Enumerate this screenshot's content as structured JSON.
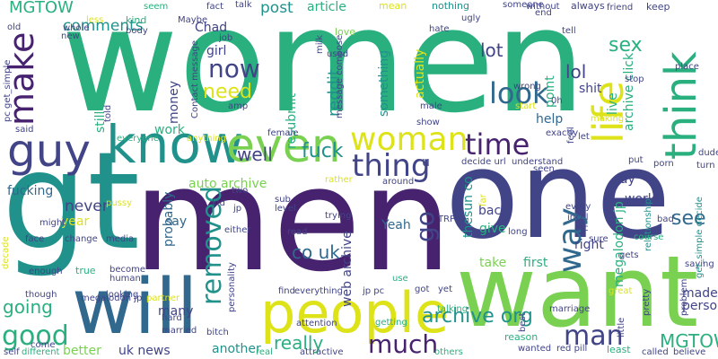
{
  "palette": {
    "purple": "#46226f",
    "indigo": "#414487",
    "blue": "#31688e",
    "teal": "#21918c",
    "green": "#2ab07f",
    "lime": "#7ad151",
    "yellow": "#dde318"
  },
  "words": [
    {
      "text": "women",
      "color": "green"
    },
    {
      "text": "gt",
      "color": "teal"
    },
    {
      "text": "men",
      "color": "purple"
    },
    {
      "text": "one",
      "color": "indigo"
    },
    {
      "text": "want",
      "color": "lime"
    },
    {
      "text": "will",
      "color": "blue"
    },
    {
      "text": "people",
      "color": "yellow"
    },
    {
      "text": "know",
      "color": "teal"
    },
    {
      "text": "even",
      "color": "lime"
    },
    {
      "text": "guy",
      "color": "indigo"
    },
    {
      "text": "think",
      "color": "green"
    },
    {
      "text": "woman",
      "color": "yellow"
    },
    {
      "text": "life",
      "color": "yellow"
    },
    {
      "text": "make",
      "color": "purple"
    },
    {
      "text": "thing",
      "color": "indigo"
    },
    {
      "text": "time",
      "color": "purple"
    },
    {
      "text": "look",
      "color": "blue"
    },
    {
      "text": "now",
      "color": "indigo"
    },
    {
      "text": "need",
      "color": "yellow"
    },
    {
      "text": "way",
      "color": "blue"
    },
    {
      "text": "man",
      "color": "indigo"
    },
    {
      "text": "good",
      "color": "green"
    },
    {
      "text": "removed",
      "color": "teal"
    },
    {
      "text": "really",
      "color": "green"
    },
    {
      "text": "much",
      "color": "purple"
    },
    {
      "text": "archive org",
      "color": "teal"
    },
    {
      "text": "MGTOW",
      "color": "green"
    },
    {
      "text": "going",
      "color": "green"
    },
    {
      "text": "go",
      "color": "indigo"
    },
    {
      "text": "well",
      "color": "indigo"
    },
    {
      "text": "fuck",
      "color": "teal"
    },
    {
      "text": "co uk",
      "color": "blue"
    },
    {
      "text": "see",
      "color": "blue"
    },
    {
      "text": "sex",
      "color": "green"
    },
    {
      "text": "lol",
      "color": "indigo"
    },
    {
      "text": "lot",
      "color": "indigo"
    },
    {
      "text": "MGTOW",
      "color": "green"
    },
    {
      "text": "comments",
      "color": "teal"
    },
    {
      "text": "post",
      "color": "teal"
    },
    {
      "text": "article",
      "color": "green"
    },
    {
      "text": "Chad",
      "color": "indigo"
    },
    {
      "text": "girl",
      "color": "indigo"
    },
    {
      "text": "money",
      "color": "indigo"
    },
    {
      "text": "still",
      "color": "green"
    },
    {
      "text": "work",
      "color": "green"
    },
    {
      "text": "reddit",
      "color": "teal"
    },
    {
      "text": "resubmit",
      "color": "green"
    },
    {
      "text": "something",
      "color": "teal"
    },
    {
      "text": "actually",
      "color": "yellow"
    },
    {
      "text": "point",
      "color": "green"
    },
    {
      "text": "shit",
      "color": "indigo"
    },
    {
      "text": "live",
      "color": "green"
    },
    {
      "text": "archive click",
      "color": "green"
    },
    {
      "text": "fucking",
      "color": "blue"
    },
    {
      "text": "auto archive",
      "color": "lime"
    },
    {
      "text": "year",
      "color": "yellow"
    },
    {
      "text": "never",
      "color": "indigo"
    },
    {
      "text": "say",
      "color": "blue"
    },
    {
      "text": "probably",
      "color": "blue"
    },
    {
      "text": "Yeah",
      "color": "blue"
    },
    {
      "text": "back",
      "color": "indigo"
    },
    {
      "text": "give",
      "color": "green"
    },
    {
      "text": "thesun co",
      "color": "teal"
    },
    {
      "text": "megalodon jp",
      "color": "green"
    },
    {
      "text": "right",
      "color": "indigo"
    },
    {
      "text": "world",
      "color": "indigo"
    },
    {
      "text": "day",
      "color": "indigo"
    },
    {
      "text": "web archive",
      "color": "indigo"
    },
    {
      "text": "many",
      "color": "indigo"
    },
    {
      "text": "uk news",
      "color": "indigo"
    },
    {
      "text": "another",
      "color": "teal"
    },
    {
      "text": "better",
      "color": "lime"
    },
    {
      "text": "take",
      "color": "lime"
    },
    {
      "text": "first",
      "color": "green"
    },
    {
      "text": "made",
      "color": "indigo"
    },
    {
      "text": "person",
      "color": "indigo"
    },
    {
      "text": "help",
      "color": "blue"
    },
    {
      "text": "kind",
      "color": "green"
    },
    {
      "text": "seem",
      "color": "green"
    },
    {
      "text": "always",
      "color": "indigo"
    },
    {
      "text": "keep",
      "color": "indigo"
    },
    {
      "text": "nothing",
      "color": "teal"
    },
    {
      "text": "someone",
      "color": "indigo"
    },
    {
      "text": "new",
      "color": "indigo"
    },
    {
      "text": "old",
      "color": "indigo"
    },
    {
      "text": "said",
      "color": "indigo"
    },
    {
      "text": "two",
      "color": "indigo"
    },
    {
      "text": "kid",
      "color": "indigo"
    },
    {
      "text": "find",
      "color": "indigo"
    },
    {
      "text": "hard",
      "color": "indigo"
    },
    {
      "text": "got",
      "color": "indigo"
    },
    {
      "text": "yet",
      "color": "indigo"
    },
    {
      "text": "true",
      "color": "green"
    },
    {
      "text": "reason",
      "color": "green"
    },
    {
      "text": "least",
      "color": "green"
    },
    {
      "text": "let",
      "color": "indigo"
    },
    {
      "text": "love",
      "color": "lime"
    },
    {
      "text": "relationship",
      "color": "teal"
    },
    {
      "text": "bad",
      "color": "indigo"
    },
    {
      "text": "saying",
      "color": "indigo"
    },
    {
      "text": "getting",
      "color": "green"
    },
    {
      "text": "talking",
      "color": "green"
    },
    {
      "text": "course",
      "color": "green"
    },
    {
      "text": "come",
      "color": "indigo"
    },
    {
      "text": "self",
      "color": "indigo"
    },
    {
      "text": "different",
      "color": "green"
    },
    {
      "text": "real",
      "color": "green"
    },
    {
      "text": "attractive",
      "color": "indigo"
    },
    {
      "text": "others",
      "color": "green"
    },
    {
      "text": "wanted",
      "color": "indigo"
    },
    {
      "text": "red pill",
      "color": "indigo"
    },
    {
      "text": "called",
      "color": "indigo"
    },
    {
      "text": "believe",
      "color": "indigo"
    },
    {
      "text": "everything",
      "color": "indigo"
    },
    {
      "text": "jp pc",
      "color": "indigo"
    },
    {
      "text": "use",
      "color": "green"
    },
    {
      "text": "megalodon jp",
      "color": "indigo"
    },
    {
      "text": "partner",
      "color": "yellow"
    },
    {
      "text": "married",
      "color": "indigo"
    },
    {
      "text": "bitch",
      "color": "indigo"
    },
    {
      "text": "looking",
      "color": "indigo"
    },
    {
      "text": "become",
      "color": "indigo"
    },
    {
      "text": "human",
      "color": "indigo"
    },
    {
      "text": "though",
      "color": "indigo"
    },
    {
      "text": "enough",
      "color": "indigo"
    },
    {
      "text": "face",
      "color": "indigo"
    },
    {
      "text": "change",
      "color": "indigo"
    },
    {
      "text": "media",
      "color": "indigo"
    },
    {
      "text": "might",
      "color": "indigo"
    },
    {
      "text": "pussy",
      "color": "yellow"
    },
    {
      "text": "everyone",
      "color": "green"
    },
    {
      "text": "anything",
      "color": "yellow"
    },
    {
      "text": "female",
      "color": "indigo"
    },
    {
      "text": "amp",
      "color": "indigo"
    },
    {
      "text": "used",
      "color": "indigo"
    },
    {
      "text": "sub",
      "color": "indigo"
    },
    {
      "text": "level",
      "color": "indigo"
    },
    {
      "text": "trying",
      "color": "indigo"
    },
    {
      "text": "rather",
      "color": "yellow"
    },
    {
      "text": "around",
      "color": "indigo"
    },
    {
      "text": "decide url",
      "color": "indigo"
    },
    {
      "text": "understand",
      "color": "indigo"
    },
    {
      "text": "exactly",
      "color": "indigo"
    },
    {
      "text": "seen",
      "color": "indigo"
    },
    {
      "text": "incel",
      "color": "indigo"
    },
    {
      "text": "every",
      "color": "indigo"
    },
    {
      "text": "long",
      "color": "indigo"
    },
    {
      "text": "etc",
      "color": "indigo"
    },
    {
      "text": "TRP",
      "color": "indigo"
    },
    {
      "text": "marriage",
      "color": "indigo"
    },
    {
      "text": "great",
      "color": "yellow"
    },
    {
      "text": "sure",
      "color": "indigo"
    },
    {
      "text": "gets",
      "color": "indigo"
    },
    {
      "text": "porn",
      "color": "indigo"
    },
    {
      "text": "dude",
      "color": "indigo"
    },
    {
      "text": "turn",
      "color": "indigo"
    },
    {
      "text": "stop",
      "color": "indigo"
    },
    {
      "text": "place",
      "color": "indigo"
    },
    {
      "text": "friend",
      "color": "indigo"
    },
    {
      "text": "tell",
      "color": "indigo"
    },
    {
      "text": "without",
      "color": "indigo"
    },
    {
      "text": "end",
      "color": "indigo"
    },
    {
      "text": "ugly",
      "color": "indigo"
    },
    {
      "text": "hate",
      "color": "indigo"
    },
    {
      "text": "wrong",
      "color": "indigo"
    },
    {
      "text": "start",
      "color": "yellow"
    },
    {
      "text": "male",
      "color": "indigo"
    },
    {
      "text": "show",
      "color": "indigo"
    },
    {
      "text": "making",
      "color": "yellow"
    },
    {
      "text": "mean",
      "color": "yellow"
    },
    {
      "text": "talk",
      "color": "indigo"
    },
    {
      "text": "fact",
      "color": "indigo"
    },
    {
      "text": "Maybe",
      "color": "indigo"
    },
    {
      "text": "less",
      "color": "yellow"
    },
    {
      "text": "whole",
      "color": "indigo"
    },
    {
      "text": "body",
      "color": "indigo"
    },
    {
      "text": "job",
      "color": "indigo"
    },
    {
      "text": "told",
      "color": "indigo"
    },
    {
      "text": "Contact message",
      "color": "indigo"
    },
    {
      "text": "message compose",
      "color": "indigo"
    },
    {
      "text": "pc get_simple",
      "color": "indigo"
    },
    {
      "text": "get_simple decide",
      "color": "teal"
    },
    {
      "text": "decade",
      "color": "yellow"
    },
    {
      "text": "personality",
      "color": "indigo"
    },
    {
      "text": "jp",
      "color": "indigo"
    },
    {
      "text": "either",
      "color": "indigo"
    },
    {
      "text": "attention",
      "color": "indigo"
    },
    {
      "text": "read",
      "color": "indigo"
    },
    {
      "text": "problem",
      "color": "indigo"
    },
    {
      "text": "pretty",
      "color": "indigo"
    },
    {
      "text": "little",
      "color": "indigo"
    },
    {
      "text": "best",
      "color": "indigo"
    },
    {
      "text": "far",
      "color": "yellow"
    },
    {
      "text": "feel",
      "color": "indigo"
    },
    {
      "text": "put",
      "color": "indigo"
    },
    {
      "text": "0h",
      "color": "indigo"
    },
    {
      "text": "milk",
      "color": "indigo"
    },
    {
      "text": "u",
      "color": "indigo"
    }
  ]
}
